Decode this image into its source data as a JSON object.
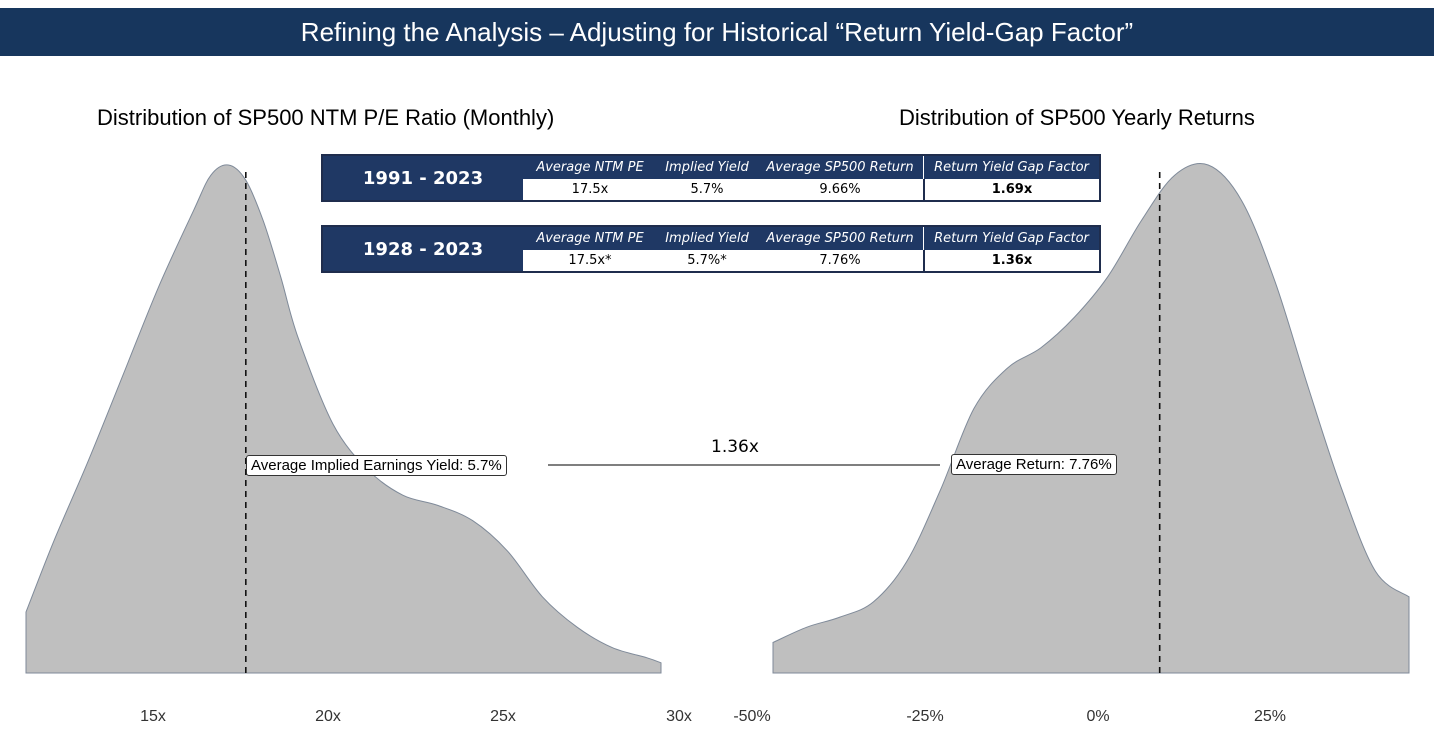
{
  "banner": {
    "title": "Refining the Analysis – Adjusting for Historical “Return Yield-Gap Factor”"
  },
  "colors": {
    "banner": "#17365d",
    "table_header": "#1f3864",
    "density_fill": "#bfbfbf",
    "density_stroke": "#7f8a99"
  },
  "tables": [
    {
      "period": "1991 - 2023",
      "headers": [
        "Average NTM PE",
        "Implied Yield",
        "Average SP500 Return",
        "Return Yield Gap Factor"
      ],
      "values": [
        "17.5x",
        "5.7%",
        "9.66%",
        "1.69x"
      ]
    },
    {
      "period": "1928 - 2023",
      "headers": [
        "Average NTM PE",
        "Implied Yield",
        "Average SP500 Return",
        "Return Yield Gap Factor"
      ],
      "values": [
        "17.5x*",
        "5.7%*",
        "7.76%",
        "1.36x"
      ]
    }
  ],
  "connector": {
    "label": "1.36x"
  },
  "chart_data": [
    {
      "type": "area",
      "title": "Distribution of SP500 NTM P/E Ratio (Monthly)",
      "xlabel": "",
      "ylabel": "",
      "x_ticks": [
        15,
        20,
        25,
        30
      ],
      "x_tick_labels": [
        "15x",
        "20x",
        "25x",
        "30x"
      ],
      "xlim": [
        11.2,
        29.4
      ],
      "ylim": [
        0,
        1
      ],
      "x": [
        11.2,
        12,
        13,
        14,
        15,
        16,
        16.5,
        17,
        17.5,
        18,
        18.5,
        19,
        20,
        21,
        22,
        23,
        24,
        25,
        26,
        27,
        28,
        29,
        29.4
      ],
      "density": [
        0.12,
        0.26,
        0.42,
        0.59,
        0.76,
        0.91,
        0.98,
        1.0,
        0.97,
        0.89,
        0.78,
        0.66,
        0.49,
        0.4,
        0.35,
        0.33,
        0.3,
        0.24,
        0.15,
        0.09,
        0.05,
        0.03,
        0.02
      ],
      "grid": false,
      "reference_line": {
        "x": 17.5,
        "style": "dashed"
      },
      "annotation": {
        "text": "Average Implied Earnings Yield: 5.7%"
      }
    },
    {
      "type": "area",
      "title": "Distribution of SP500 Yearly Returns",
      "xlabel": "",
      "ylabel": "",
      "x_ticks": [
        -50,
        -25,
        0,
        25
      ],
      "x_tick_labels": [
        "-50%",
        "-25%",
        "0%",
        "25%"
      ],
      "xlim": [
        -50,
        45
      ],
      "ylim": [
        0,
        1
      ],
      "x": [
        -50,
        -45,
        -40,
        -35,
        -30,
        -25,
        -20,
        -15,
        -10,
        -5,
        0,
        5,
        10,
        15,
        20,
        25,
        30,
        35,
        40,
        45
      ],
      "density": [
        0.06,
        0.09,
        0.11,
        0.14,
        0.22,
        0.36,
        0.52,
        0.6,
        0.64,
        0.7,
        0.78,
        0.89,
        0.98,
        1.0,
        0.93,
        0.77,
        0.56,
        0.36,
        0.2,
        0.15
      ],
      "grid": false,
      "reference_line": {
        "x": 7.76,
        "style": "dashed"
      },
      "annotation": {
        "text": "Average Return: 7.76%"
      }
    }
  ]
}
